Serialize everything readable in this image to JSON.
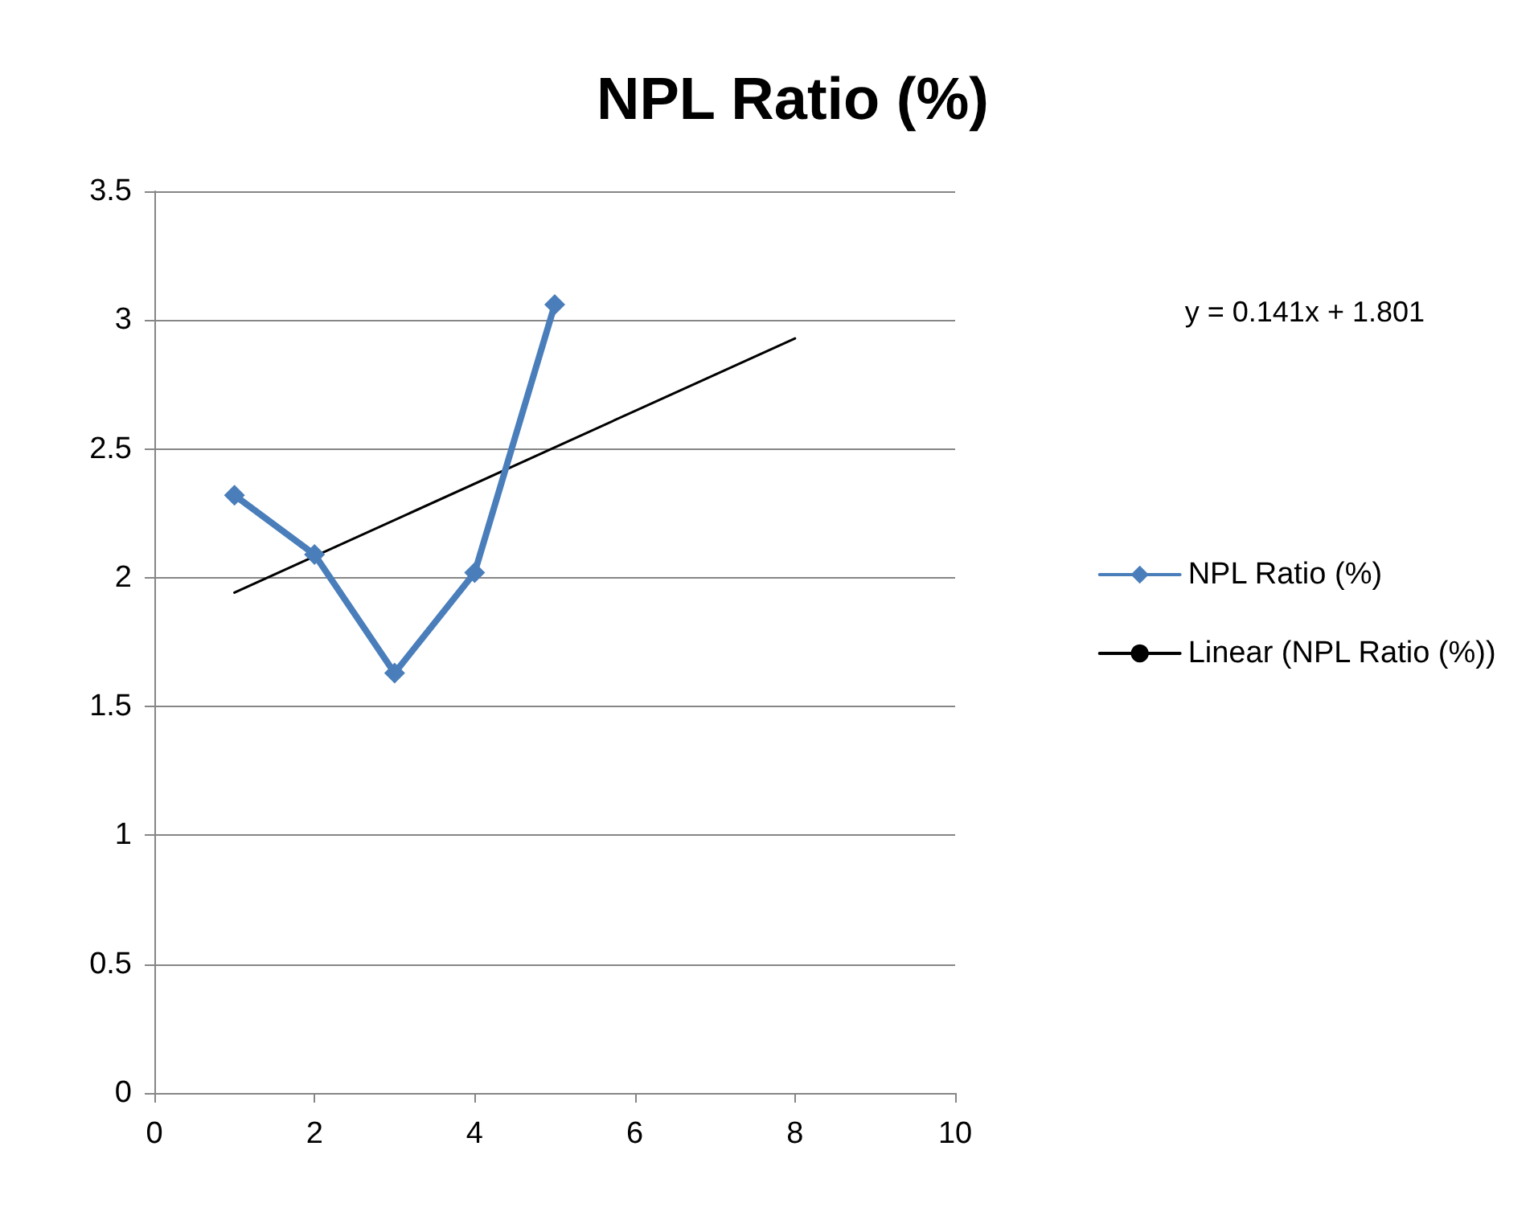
{
  "chart_data": {
    "type": "line",
    "title": "NPL Ratio (%)",
    "x": [
      1,
      2,
      3,
      4,
      5
    ],
    "series": [
      {
        "name": "NPL Ratio (%)",
        "color": "#4a7ebb",
        "values": [
          2.32,
          2.09,
          1.63,
          2.02,
          3.06
        ],
        "marker": "diamond"
      },
      {
        "name": "Linear (NPL Ratio (%))",
        "color": "#000000",
        "type": "line",
        "x": [
          1,
          8
        ],
        "values": [
          1.942,
          2.929
        ],
        "marker": "none"
      }
    ],
    "annotations": [
      "y = 0.141x + 1.801"
    ],
    "xlim": [
      0,
      10
    ],
    "xticks": [
      0,
      2,
      4,
      6,
      8,
      10
    ],
    "ylim": [
      0,
      3.5
    ],
    "yticks": [
      0,
      0.5,
      1,
      1.5,
      2,
      2.5,
      3,
      3.5
    ],
    "grid": "y",
    "legend": "right"
  }
}
